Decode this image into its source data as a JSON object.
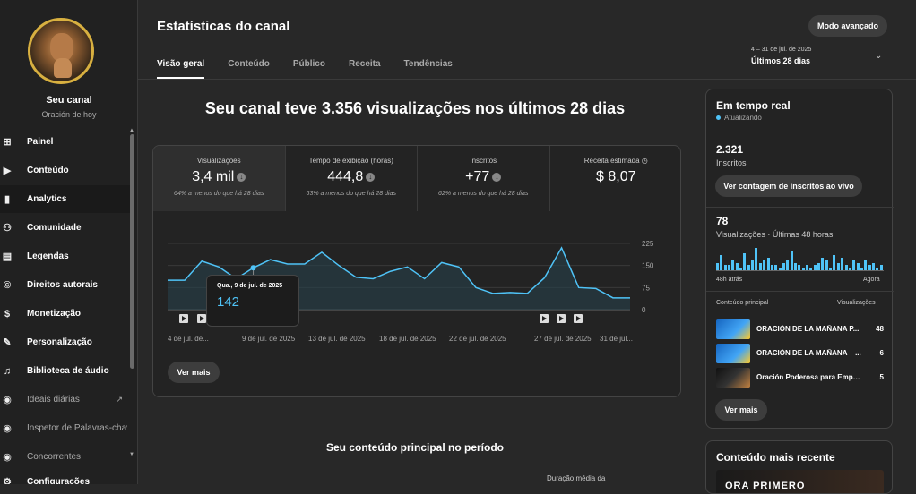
{
  "sidebar": {
    "channel_name": "Seu canal",
    "channel_sub": "Oración de hoy",
    "items": [
      {
        "label": "Painel",
        "icon": "dashboard-icon",
        "glyph": "⊞"
      },
      {
        "label": "Conteúdo",
        "icon": "content-icon",
        "glyph": "▶"
      },
      {
        "label": "Analytics",
        "icon": "analytics-icon",
        "glyph": "▮"
      },
      {
        "label": "Comunidade",
        "icon": "community-icon",
        "glyph": "⚇"
      },
      {
        "label": "Legendas",
        "icon": "subtitles-icon",
        "glyph": "▤"
      },
      {
        "label": "Direitos autorais",
        "icon": "copyright-icon",
        "glyph": "©"
      },
      {
        "label": "Monetização",
        "icon": "monetization-icon",
        "glyph": "$"
      },
      {
        "label": "Personalização",
        "icon": "customization-icon",
        "glyph": "✎"
      },
      {
        "label": "Biblioteca de áudio",
        "icon": "audio-library-icon",
        "glyph": "♫"
      },
      {
        "label": "Ideais diárias",
        "icon": "daily-ideas-icon",
        "glyph": "◉"
      },
      {
        "label": "Inspetor de Palavras-chav",
        "icon": "keyword-inspector-icon",
        "glyph": "◉"
      },
      {
        "label": "Concorrentes",
        "icon": "competitors-icon",
        "glyph": "◉"
      },
      {
        "label": "Configurações",
        "icon": "settings-icon",
        "glyph": "⚙"
      }
    ]
  },
  "header": {
    "title": "Estatísticas do canal",
    "advanced_mode": "Modo avançado",
    "date_range": "4 – 31 de jul. de 2025",
    "date_label": "Últimos 28 dias",
    "tabs": [
      "Visão geral",
      "Conteúdo",
      "Público",
      "Receita",
      "Tendências"
    ]
  },
  "overview": {
    "headline": "Seu canal teve 3.356 visualizações nos últimos 28 dias",
    "metrics": [
      {
        "label": "Visualizações",
        "value": "3,4 mil",
        "note": "64% a menos do que há 28 dias"
      },
      {
        "label": "Tempo de exibição (horas)",
        "value": "444,8",
        "note": "63% a menos do que há 28 dias"
      },
      {
        "label": "Inscritos",
        "value": "+77",
        "note": "62% a menos do que há 28 dias"
      },
      {
        "label": "Receita estimada",
        "value": "$ 8,07",
        "note": ""
      }
    ],
    "tooltip": {
      "date": "Qua., 9 de jul. de 2025",
      "value": "142"
    },
    "see_more": "Ver mais",
    "top_content_title": "Seu conteúdo principal no período",
    "avg_duration_label": "Duração média da"
  },
  "chart_data": {
    "type": "area",
    "x": [
      "4 jul",
      "5 jul",
      "6 jul",
      "7 jul",
      "8 jul",
      "9 jul",
      "10 jul",
      "11 jul",
      "12 jul",
      "13 jul",
      "14 jul",
      "15 jul",
      "16 jul",
      "17 jul",
      "18 jul",
      "19 jul",
      "20 jul",
      "21 jul",
      "22 jul",
      "23 jul",
      "24 jul",
      "25 jul",
      "26 jul",
      "27 jul",
      "28 jul",
      "29 jul",
      "30 jul",
      "31 jul"
    ],
    "series": [
      {
        "values": [
          100,
          100,
          165,
          145,
          105,
          142,
          170,
          155,
          155,
          195,
          150,
          110,
          105,
          130,
          145,
          105,
          160,
          145,
          75,
          55,
          58,
          55,
          108,
          210,
          75,
          72,
          40,
          40
        ]
      }
    ],
    "x_ticks": [
      "4 de jul. de...",
      "9 de jul. de 2025",
      "13 de jul. de 2025",
      "18 de jul. de 2025",
      "22 de jul. de 2025",
      "27 de jul. de 2025",
      "31 de jul..."
    ],
    "y_ticks": [
      "225",
      "150",
      "75",
      "0"
    ],
    "ylim": [
      0,
      225
    ],
    "color": "#4fc3f7"
  },
  "realtime": {
    "title": "Em tempo real",
    "status": "Atualizando",
    "subscribers": "2.321",
    "subscribers_label": "Inscritos",
    "live_count_btn": "Ver contagem de inscritos ao vivo",
    "views": "78",
    "views_label": "Visualizações · Últimas 48 horas",
    "bars": [
      3,
      6,
      2,
      2,
      4,
      3,
      1,
      7,
      2,
      4,
      9,
      3,
      4,
      5,
      2,
      2,
      1,
      3,
      4,
      8,
      3,
      2,
      1,
      2,
      1,
      2,
      3,
      5,
      4,
      1,
      6,
      3,
      5,
      2,
      1,
      4,
      3,
      1,
      4,
      2,
      3,
      1,
      2
    ],
    "ago_label": "48h atrás",
    "now_label": "Agora",
    "top_label": "Conteúdo principal",
    "views_col": "Visualizações",
    "videos": [
      {
        "title": "ORACIÓN DE LA MAÑANA P...",
        "views": "48"
      },
      {
        "title": "ORACIÓN DE LA MAÑANA – ...",
        "views": "6"
      },
      {
        "title": "Oración Poderosa para Empe...",
        "views": "5"
      }
    ],
    "see_more": "Ver mais"
  },
  "recent": {
    "title": "Conteúdo mais recente",
    "thumb_text": "ORA PRIMERO"
  }
}
